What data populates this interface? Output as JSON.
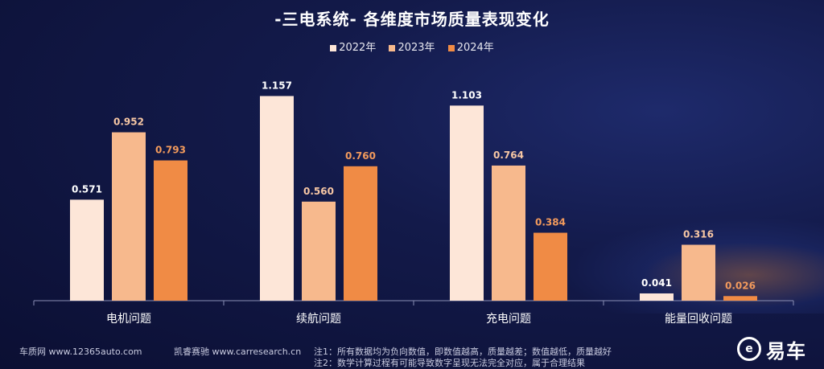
{
  "chart_data": {
    "type": "bar",
    "title": "-三电系统- 各维度市场质量表现变化",
    "categories": [
      "电机问题",
      "续航问题",
      "充电问题",
      "能量回收问题"
    ],
    "series": [
      {
        "name": "2022年",
        "values": [
          0.571,
          1.157,
          1.103,
          0.041
        ],
        "color": "#fde6d8",
        "label_color": "#ffffff"
      },
      {
        "name": "2023年",
        "values": [
          0.952,
          0.56,
          0.764,
          0.316
        ],
        "color": "#f7b98d",
        "label_color": "#f7c7a4"
      },
      {
        "name": "2024年",
        "values": [
          0.793,
          0.76,
          0.384,
          0.026
        ],
        "color": "#f08b45",
        "label_color": "#f29a5c"
      }
    ],
    "value_labels": [
      [
        "0.571",
        "1.157",
        "1.103",
        "0.041"
      ],
      [
        "0.952",
        "0.560",
        "0.764",
        "0.316"
      ],
      [
        "0.793",
        "0.760",
        "0.384",
        "0.026"
      ]
    ],
    "ylim": [
      0,
      1.2
    ],
    "grid": false,
    "legend_position": "top-center",
    "xlabel": "",
    "ylabel": ""
  },
  "footer": {
    "source1": "车质网 www.12365auto.com",
    "source2": "凯睿赛驰 www.carresearch.cn",
    "note1": "注1：所有数据均为负向数值，即数值越高，质量越差；数值越低，质量越好",
    "note2": "注2：数学计算过程有可能导致数字呈现无法完全对应，属于合理结果"
  },
  "logo": {
    "mark": "e",
    "text": "易车"
  }
}
